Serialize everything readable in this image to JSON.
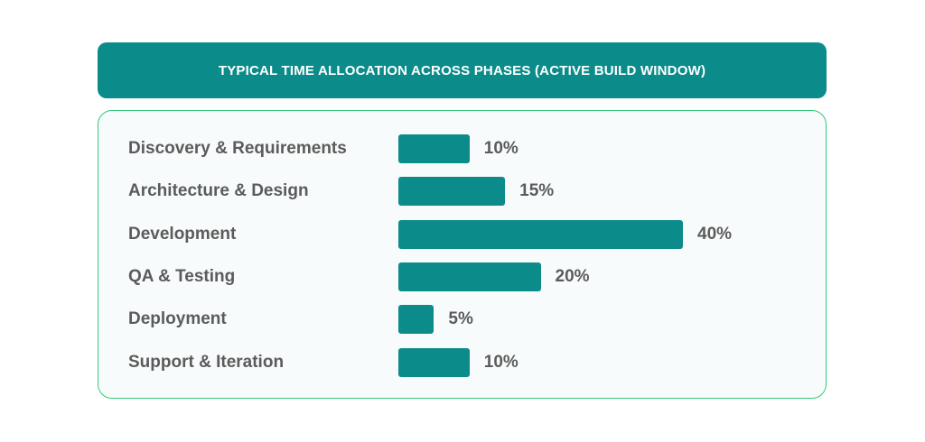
{
  "header": {
    "title": "TYPICAL TIME ALLOCATION ACROSS PHASES (ACTIVE BUILD WINDOW)"
  },
  "colors": {
    "accent": "#0b8c8a",
    "panel_border": "#33c97a",
    "label_text": "#5b5b5b"
  },
  "chart_data": {
    "type": "bar",
    "orientation": "horizontal",
    "title": "TYPICAL TIME ALLOCATION ACROSS PHASES (ACTIVE BUILD WINDOW)",
    "categories": [
      "Discovery & Requirements",
      "Architecture & Design",
      "Development",
      "QA & Testing",
      "Deployment",
      "Support & Iteration"
    ],
    "values": [
      10,
      15,
      40,
      20,
      5,
      10
    ],
    "value_labels": [
      "10%",
      "15%",
      "40%",
      "20%",
      "5%",
      "10%"
    ],
    "xlim": [
      0,
      40
    ],
    "grid": false,
    "legend": "none"
  }
}
